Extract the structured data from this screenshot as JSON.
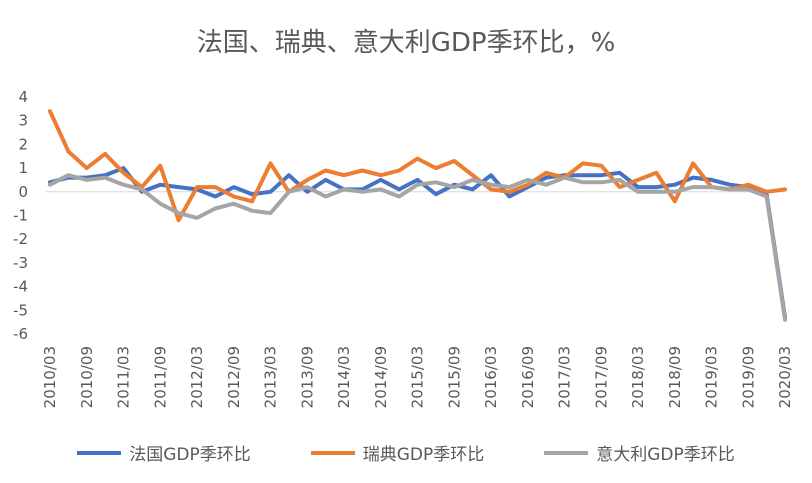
{
  "chart_data": {
    "type": "line",
    "title": "法国、瑞典、意大利GDP季环比，%",
    "xlabel": "",
    "ylabel": "",
    "ylim": [
      -6,
      4
    ],
    "yticks": [
      4,
      3,
      2,
      1,
      0,
      -1,
      -2,
      -3,
      -4,
      -5,
      -6
    ],
    "x": [
      "2010/03",
      "2010/06",
      "2010/09",
      "2010/12",
      "2011/03",
      "2011/06",
      "2011/09",
      "2011/12",
      "2012/03",
      "2012/06",
      "2012/09",
      "2012/12",
      "2013/03",
      "2013/06",
      "2013/09",
      "2013/12",
      "2014/03",
      "2014/06",
      "2014/09",
      "2014/12",
      "2015/03",
      "2015/06",
      "2015/09",
      "2015/12",
      "2016/03",
      "2016/06",
      "2016/09",
      "2016/12",
      "2017/03",
      "2017/06",
      "2017/09",
      "2017/12",
      "2018/03",
      "2018/06",
      "2018/09",
      "2018/12",
      "2019/03",
      "2019/06",
      "2019/09",
      "2019/12",
      "2020/03"
    ],
    "xtick_labels": [
      "2010/03",
      "2010/09",
      "2011/03",
      "2011/09",
      "2012/03",
      "2012/09",
      "2013/03",
      "2013/09",
      "2014/03",
      "2014/09",
      "2015/03",
      "2015/09",
      "2016/03",
      "2016/09",
      "2017/03",
      "2017/09",
      "2018/03",
      "2018/09",
      "2019/03",
      "2019/09",
      "2020/03"
    ],
    "series": [
      {
        "name": "法国GDP季环比",
        "color": "#4472C4",
        "values": [
          0.4,
          0.6,
          0.6,
          0.7,
          1.0,
          0.0,
          0.3,
          0.2,
          0.1,
          -0.2,
          0.2,
          -0.1,
          0.0,
          0.7,
          0.0,
          0.5,
          0.1,
          0.1,
          0.5,
          0.1,
          0.5,
          -0.1,
          0.3,
          0.1,
          0.7,
          -0.2,
          0.2,
          0.6,
          0.7,
          0.7,
          0.7,
          0.8,
          0.2,
          0.2,
          0.3,
          0.6,
          0.5,
          0.3,
          0.2,
          -0.1,
          -5.3
        ]
      },
      {
        "name": "瑞典GDP季环比",
        "color": "#ED7D31",
        "values": [
          3.4,
          1.7,
          1.0,
          1.6,
          0.8,
          0.2,
          1.1,
          -1.2,
          0.2,
          0.2,
          -0.2,
          -0.4,
          1.2,
          0.0,
          0.5,
          0.9,
          0.7,
          0.9,
          0.7,
          0.9,
          1.4,
          1.0,
          1.3,
          0.7,
          0.1,
          0.0,
          0.3,
          0.8,
          0.6,
          1.2,
          1.1,
          0.2,
          0.5,
          0.8,
          -0.4,
          1.2,
          0.2,
          0.1,
          0.3,
          0.0,
          0.1
        ]
      },
      {
        "name": "意大利GDP季环比",
        "color": "#A5A5A5",
        "values": [
          0.3,
          0.7,
          0.5,
          0.6,
          0.3,
          0.1,
          -0.5,
          -0.9,
          -1.1,
          -0.7,
          -0.5,
          -0.8,
          -0.9,
          0.0,
          0.2,
          -0.2,
          0.1,
          0.0,
          0.1,
          -0.2,
          0.3,
          0.4,
          0.2,
          0.5,
          0.3,
          0.2,
          0.5,
          0.3,
          0.6,
          0.4,
          0.4,
          0.5,
          0.0,
          0.0,
          0.0,
          0.2,
          0.2,
          0.1,
          0.1,
          -0.2,
          -5.4
        ]
      }
    ]
  }
}
